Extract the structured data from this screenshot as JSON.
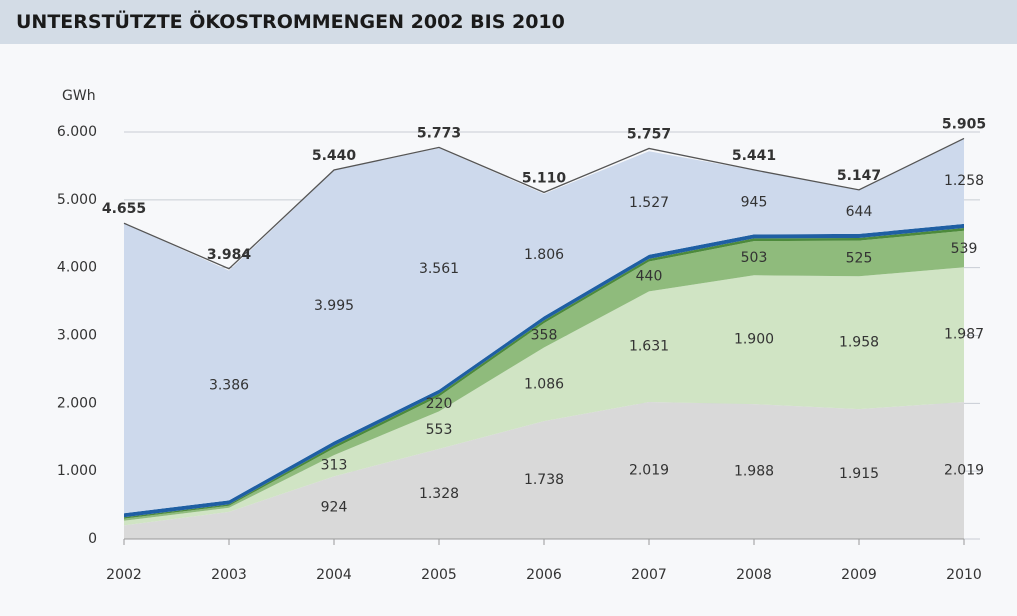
{
  "header": {
    "title": "UNTERSTÜTZTE ÖKOSTROMMENGEN 2002 BIS 2010"
  },
  "chart_data": {
    "type": "stacked_area",
    "y_axis_label": "GWh",
    "categories": [
      "2002",
      "2003",
      "2004",
      "2005",
      "2006",
      "2007",
      "2008",
      "2009",
      "2010"
    ],
    "ylim": [
      0,
      6000
    ],
    "yticks": [
      0,
      {
        "value": 1000,
        "label": "1.000"
      },
      {
        "value": 2000,
        "label": "2.000"
      },
      {
        "value": 3000,
        "label": "3.000"
      },
      {
        "value": 4000,
        "label": "4.000"
      },
      {
        "value": 5000,
        "label": "5.000"
      },
      {
        "value": 6000,
        "label": "6.000"
      }
    ],
    "grid": true,
    "series": [
      {
        "color": "#d9d9d9",
        "values": [
          200,
          400,
          924,
          1328,
          1738,
          2019,
          1988,
          1915,
          2019
        ],
        "value_labels": [
          null,
          null,
          "924",
          "1.328",
          "1.738",
          "2.019",
          "1.988",
          "1.915",
          "2.019"
        ]
      },
      {
        "color": "#d0e4c4",
        "values": [
          70,
          60,
          313,
          553,
          1086,
          1631,
          1900,
          1958,
          1987
        ],
        "value_labels": [
          null,
          null,
          "313",
          "553",
          "1.086",
          "1.631",
          "1.900",
          "1.958",
          "1.987"
        ]
      },
      {
        "color": "#8fbb7c",
        "values": [
          30,
          30,
          100,
          220,
          358,
          440,
          503,
          525,
          539
        ],
        "value_labels": [
          null,
          null,
          null,
          "220",
          "358",
          "440",
          "503",
          "525",
          "539"
        ]
      },
      {
        "color": "#4d8a3b",
        "values": [
          20,
          20,
          40,
          40,
          40,
          40,
          40,
          40,
          40
        ]
      },
      {
        "color": "#1f5fa3",
        "values": [
          60,
          60,
          60,
          60,
          60,
          60,
          60,
          60,
          60
        ]
      },
      {
        "color": "#cdd9ec",
        "values": [
          4275,
          3386,
          3995,
          3561,
          1806,
          1527,
          945,
          644,
          1258
        ],
        "value_labels": [
          null,
          "3.386",
          "3.995",
          "3.561",
          "1.806",
          "1.527",
          "945",
          "644",
          "1.258"
        ]
      }
    ],
    "totals": {
      "color": "#555555",
      "values": [
        4655,
        3984,
        5440,
        5773,
        5110,
        5757,
        5441,
        5147,
        5905
      ],
      "value_labels": [
        "4.655",
        "3.984",
        "5.440",
        "5.773",
        "5.110",
        "5.757",
        "5.441",
        "5.147",
        "5.905"
      ]
    }
  }
}
